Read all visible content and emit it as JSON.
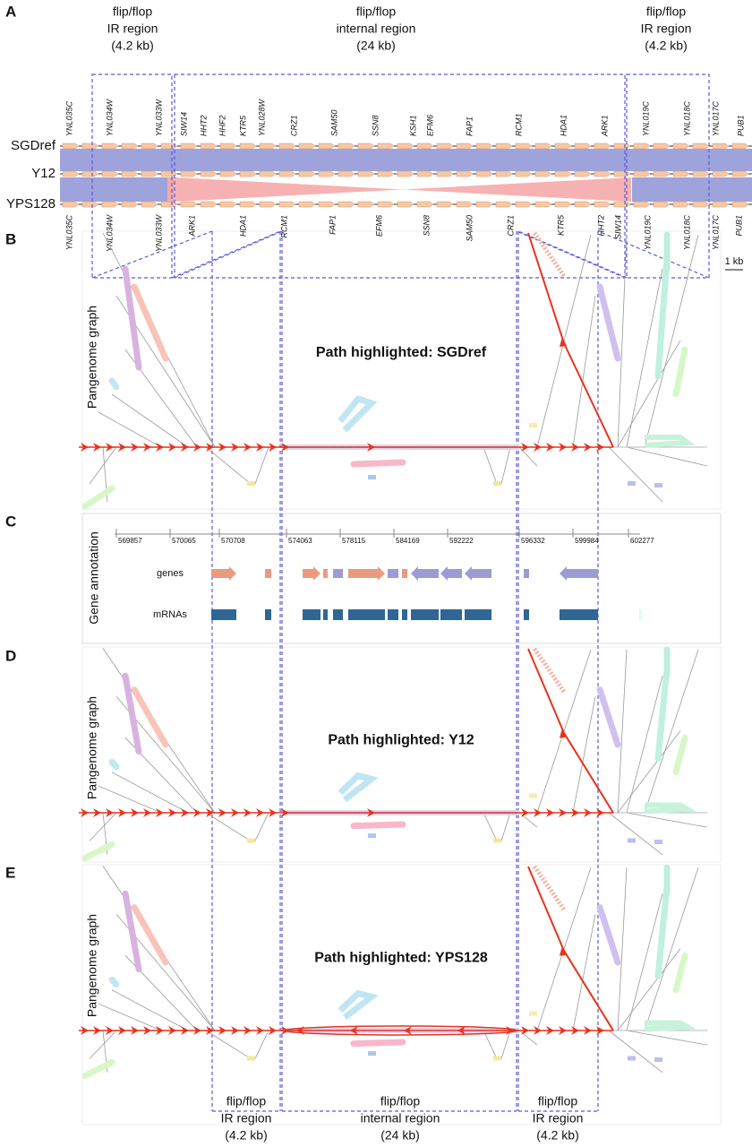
{
  "panel_labels": [
    "A",
    "B",
    "C",
    "D",
    "E"
  ],
  "top_regions": [
    {
      "lines": [
        "flip/flop",
        "IR region",
        "(4.2 kb)"
      ]
    },
    {
      "lines": [
        "flip/flop",
        "internal region",
        "(24 kb)"
      ]
    },
    {
      "lines": [
        "flip/flop",
        "IR region",
        "(4.2 kb)"
      ]
    }
  ],
  "tracks": [
    "SGDref",
    "Y12",
    "YPS128"
  ],
  "genes_top": [
    "YNL035C",
    "YNL034W",
    "YNL033W",
    "SIW14",
    "HHT2",
    "HHF2",
    "KTR5",
    "YNL028W",
    "CRZ1",
    "SAM50",
    "SSN8",
    "KSH1",
    "EFM6",
    "FAP1",
    "RCM1",
    "HDA1",
    "ARK1",
    "YNL019C",
    "YNL018C",
    "YNL017C",
    "PUB1"
  ],
  "genes_bottom": [
    "YNL035C",
    "YNL034W",
    "YNL033W",
    "ARK1",
    "HDA1",
    "RCM1",
    "FAP1",
    "EFM6",
    "SSN8",
    "SAM50",
    "CRZ1",
    "KTR5",
    "HHT2",
    "SIW14",
    "YNL019C",
    "YNL018C",
    "YNL017C",
    "PUB1"
  ],
  "scale": "1 kb",
  "graph_label": "Pangenome graph",
  "paths": [
    "Path highlighted: SGDref",
    "Path highlighted: Y12",
    "Path highlighted: YPS128"
  ],
  "annotation": {
    "label": "Gene annotation",
    "coordinates": [
      569857,
      570065,
      570708,
      574063,
      578115,
      584169,
      592222,
      596332,
      599984,
      602277
    ],
    "tracks": [
      "genes",
      "mRNAs"
    ]
  },
  "bottom_regions": [
    {
      "lines": [
        "flip/flop",
        "IR region",
        "(4.2 kb)"
      ]
    },
    {
      "lines": [
        "flip/flop",
        "internal region",
        "(24 kb)"
      ]
    },
    {
      "lines": [
        "flip/flop",
        "IR region",
        "(4.2 kb)"
      ]
    }
  ]
}
